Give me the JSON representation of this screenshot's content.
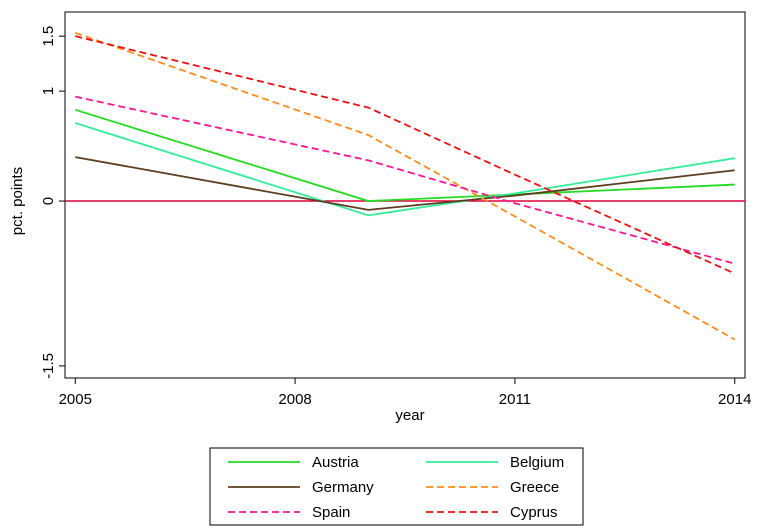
{
  "chart_data": {
    "type": "line",
    "x": [
      2005,
      2009,
      2011,
      2014
    ],
    "series": [
      {
        "name": "Austria",
        "color": "#22dd22",
        "dashed": false,
        "values": [
          0.83,
          0.0,
          0.06,
          0.15
        ]
      },
      {
        "name": "Belgium",
        "color": "#33ee99",
        "dashed": false,
        "values": [
          0.71,
          -0.13,
          0.07,
          0.39
        ]
      },
      {
        "name": "Germany",
        "color": "#5c3d1e",
        "dashed": false,
        "values": [
          0.4,
          -0.08,
          0.05,
          0.28
        ]
      },
      {
        "name": "Greece",
        "color": "#ff8c1a",
        "dashed": true,
        "values": [
          1.53,
          0.6,
          -0.14,
          -1.26
        ]
      },
      {
        "name": "Spain",
        "color": "#ff1493",
        "dashed": true,
        "values": [
          0.95,
          0.37,
          -0.02,
          -0.57
        ]
      },
      {
        "name": "Cyprus",
        "color": "#ee1111",
        "dashed": true,
        "values": [
          1.5,
          0.85,
          0.24,
          -0.66
        ]
      }
    ],
    "xlabel": "year",
    "ylabel": "pct. points",
    "xlim": [
      2004.86,
      2014.14
    ],
    "xticks": [
      2005,
      2008,
      2011,
      2014
    ],
    "ylim": [
      -1.61,
      1.72
    ],
    "yticks": [
      -1.5,
      0,
      1,
      1.5
    ],
    "reference_line": {
      "value": 0,
      "color": "#e0003a"
    },
    "legend": "bottom"
  }
}
